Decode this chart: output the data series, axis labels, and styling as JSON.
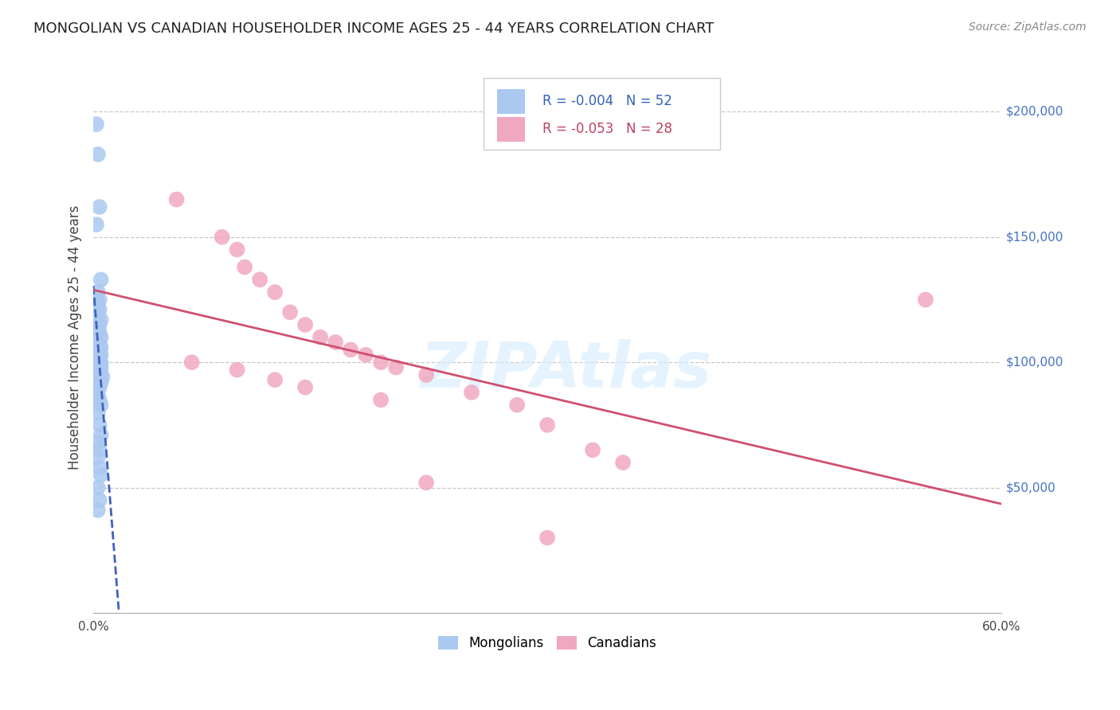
{
  "title": "MONGOLIAN VS CANADIAN HOUSEHOLDER INCOME AGES 25 - 44 YEARS CORRELATION CHART",
  "source": "Source: ZipAtlas.com",
  "ylabel": "Householder Income Ages 25 - 44 years",
  "xlim": [
    0.0,
    0.6
  ],
  "ylim": [
    0,
    220000
  ],
  "ytick_positions": [
    50000,
    100000,
    150000,
    200000
  ],
  "ytick_labels": [
    "$50,000",
    "$100,000",
    "$150,000",
    "$200,000"
  ],
  "xtick_positions": [
    0.0,
    0.1,
    0.2,
    0.3,
    0.4,
    0.5,
    0.6
  ],
  "xtick_labels": [
    "0.0%",
    "",
    "",
    "",
    "",
    "",
    "60.0%"
  ],
  "legend_r_mongolian": "-0.004",
  "legend_n_mongolian": "52",
  "legend_r_canadian": "-0.053",
  "legend_n_canadian": "28",
  "mongolian_color": "#aac8f0",
  "canadian_color": "#f0a8c0",
  "mongolian_line_color": "#4060c0",
  "canadian_line_color": "#d05070",
  "background_color": "#ffffff",
  "grid_color": "#c8c8c8",
  "watermark_color": "#daeeff",
  "mongolian_x": [
    0.002,
    0.003,
    0.004,
    0.002,
    0.005,
    0.003,
    0.004,
    0.003,
    0.004,
    0.003,
    0.005,
    0.004,
    0.003,
    0.004,
    0.005,
    0.003,
    0.004,
    0.005,
    0.003,
    0.004,
    0.005,
    0.003,
    0.004,
    0.004,
    0.003,
    0.004,
    0.005,
    0.004,
    0.003,
    0.005,
    0.004,
    0.003,
    0.005,
    0.004,
    0.006,
    0.005,
    0.004,
    0.003,
    0.004,
    0.005,
    0.003,
    0.004,
    0.005,
    0.003,
    0.004,
    0.003,
    0.004,
    0.005,
    0.003,
    0.004,
    0.003,
    0.004
  ],
  "mongolian_y": [
    195000,
    183000,
    162000,
    155000,
    133000,
    128000,
    125000,
    123000,
    121000,
    119000,
    117000,
    115000,
    113000,
    112000,
    110000,
    108000,
    107000,
    106000,
    105000,
    104000,
    103000,
    102000,
    101500,
    101000,
    100500,
    100000,
    99800,
    99500,
    99000,
    98000,
    97000,
    96500,
    95500,
    95000,
    94000,
    92000,
    90000,
    87000,
    85000,
    83000,
    80000,
    75000,
    71000,
    68000,
    65000,
    62000,
    58000,
    55000,
    50000,
    45000,
    41000,
    105000
  ],
  "canadian_x": [
    0.055,
    0.085,
    0.095,
    0.1,
    0.11,
    0.12,
    0.13,
    0.14,
    0.15,
    0.16,
    0.17,
    0.18,
    0.19,
    0.2,
    0.22,
    0.25,
    0.28,
    0.3,
    0.33,
    0.35,
    0.065,
    0.095,
    0.12,
    0.14,
    0.19,
    0.55,
    0.22,
    0.3
  ],
  "canadian_y": [
    165000,
    150000,
    145000,
    138000,
    133000,
    128000,
    120000,
    115000,
    110000,
    108000,
    105000,
    103000,
    100000,
    98000,
    95000,
    88000,
    83000,
    75000,
    65000,
    60000,
    100000,
    97000,
    93000,
    90000,
    85000,
    125000,
    52000,
    30000
  ],
  "title_fontsize": 13,
  "source_fontsize": 10,
  "ylabel_fontsize": 12,
  "tick_fontsize": 11,
  "legend_fontsize": 12,
  "scatter_size": 200
}
